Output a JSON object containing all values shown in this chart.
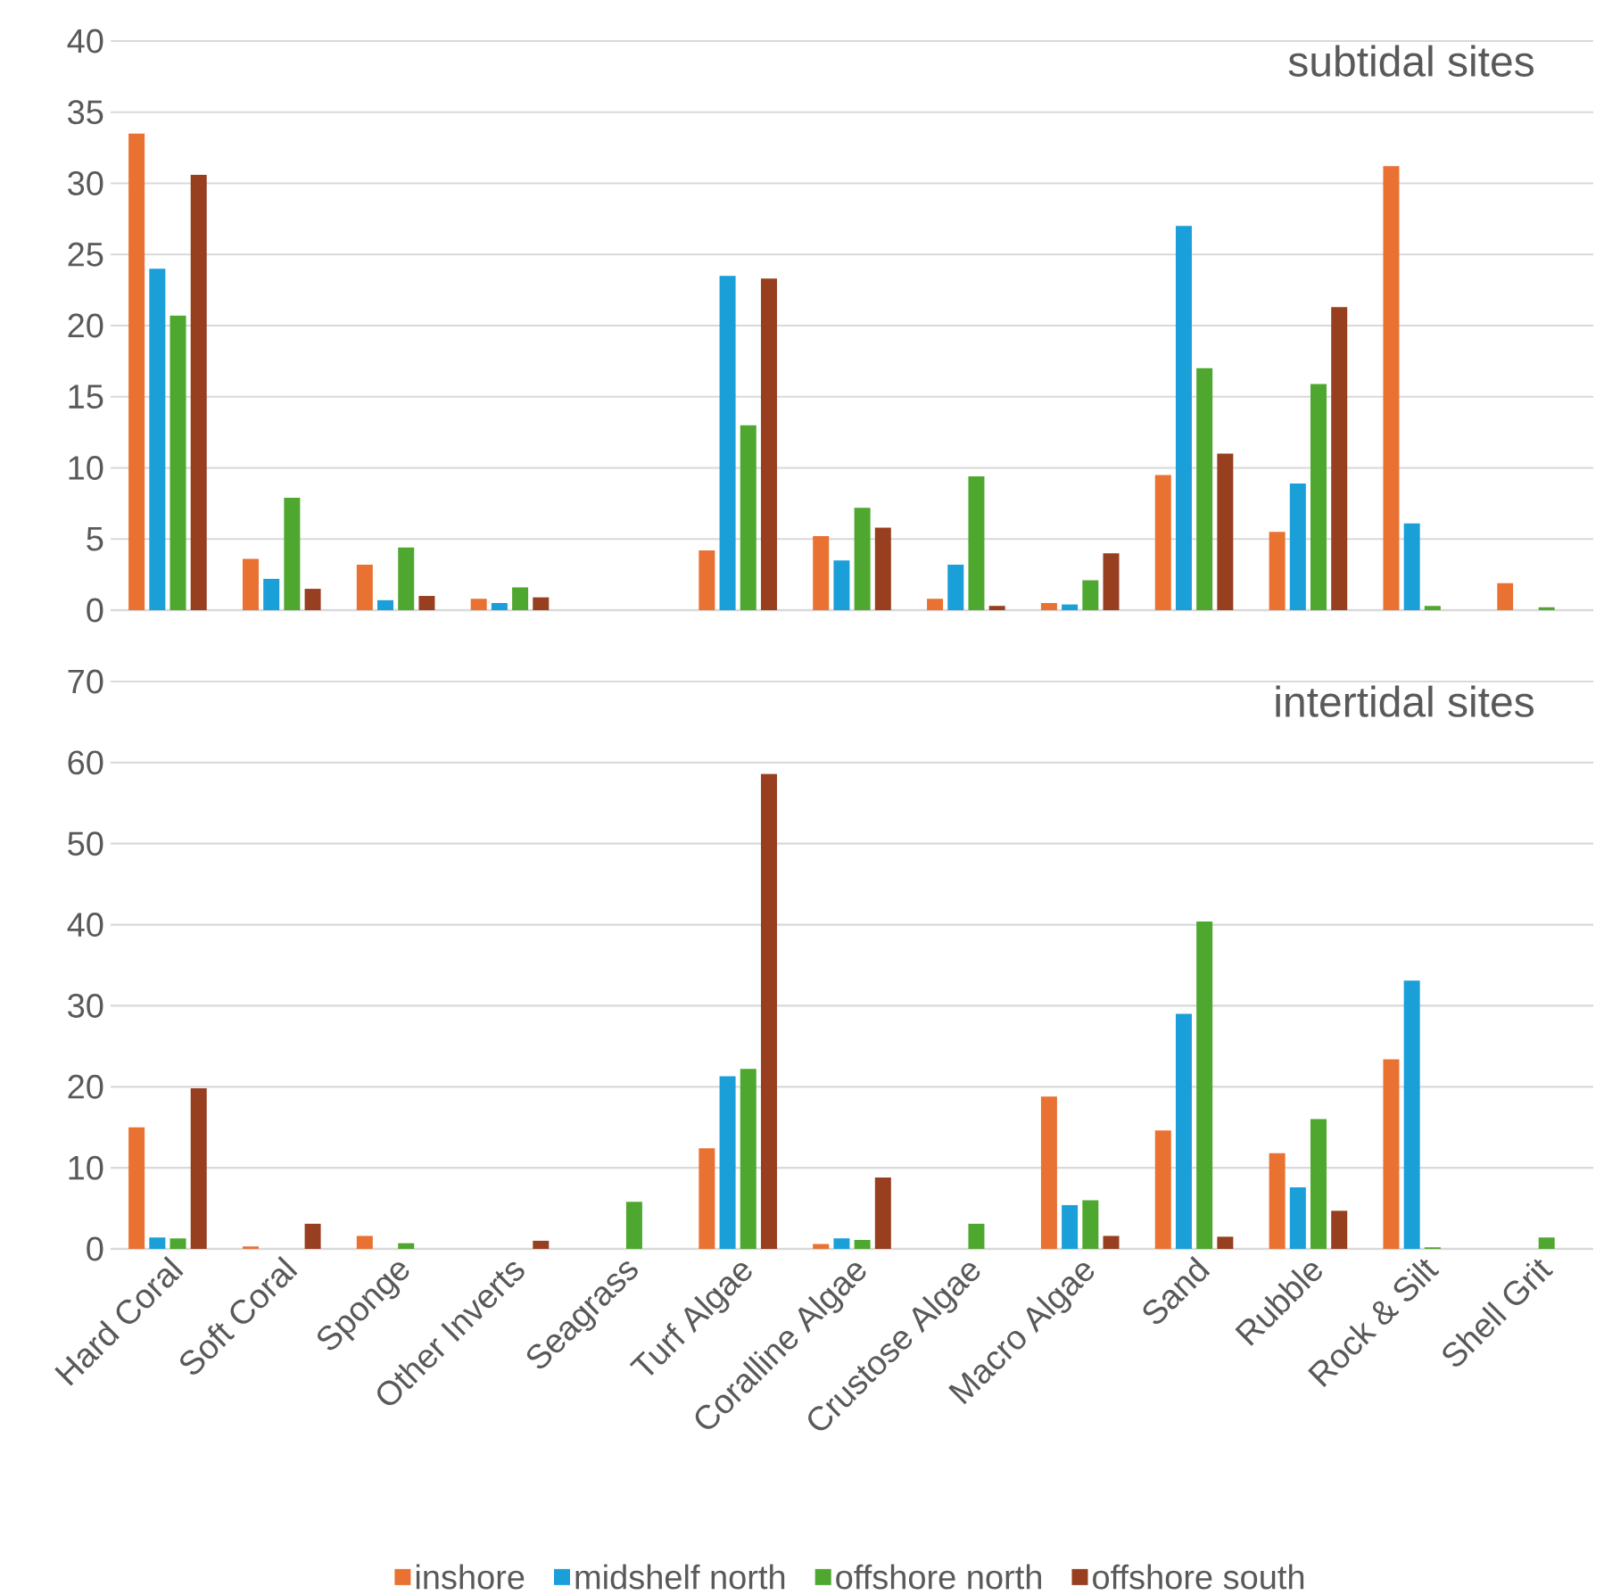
{
  "chart_data": [
    {
      "type": "bar",
      "title": "subtidal sites",
      "categories": [
        null,
        null,
        null,
        null,
        null,
        null,
        null,
        null,
        null,
        null,
        null,
        null,
        null
      ],
      "series": [
        {
          "color": "#e97132",
          "values": [
            33.5,
            3.6,
            3.2,
            0.8,
            0,
            4.2,
            5.2,
            0.8,
            0.5,
            9.5,
            5.5,
            31.2,
            1.9
          ]
        },
        {
          "color": "#1a9fd8",
          "values": [
            24.0,
            2.2,
            0.7,
            0.5,
            0,
            23.5,
            3.5,
            3.2,
            0.4,
            27.0,
            8.9,
            6.1,
            0
          ]
        },
        {
          "color": "#4ea72e",
          "values": [
            20.7,
            7.9,
            4.4,
            1.6,
            0,
            13.0,
            7.2,
            9.4,
            2.1,
            17.0,
            15.9,
            0.3,
            0.2
          ]
        },
        {
          "color": "#973f1f",
          "values": [
            30.6,
            1.5,
            1.0,
            0.9,
            0,
            23.3,
            5.8,
            0.3,
            4.0,
            11.0,
            21.3,
            0,
            0
          ]
        }
      ],
      "ylim": [
        0,
        40
      ],
      "yticks": [
        0,
        5,
        10,
        15,
        20,
        25,
        30,
        35,
        40
      ],
      "grid": "y",
      "tick_labels": "y"
    },
    {
      "type": "bar",
      "title": "intertidal sites",
      "categories": [
        "Hard Coral",
        "Soft Coral",
        "Sponge",
        "Other Inverts",
        "Seagrass",
        "Turf Algae",
        "Coralline Algae",
        "Crustose Algae",
        "Macro Algae",
        "Sand",
        "Rubble",
        "Rock & Silt",
        "Shell Grit"
      ],
      "series": [
        {
          "name": "inshore",
          "color": "#e97132",
          "values": [
            15.0,
            0.3,
            1.6,
            0,
            0,
            12.4,
            0.6,
            0,
            18.8,
            14.6,
            11.8,
            23.4,
            0
          ]
        },
        {
          "name": "midshelf north",
          "color": "#1a9fd8",
          "values": [
            1.4,
            0,
            0,
            0,
            0,
            21.3,
            1.3,
            0,
            5.4,
            29.0,
            7.6,
            33.1,
            0
          ]
        },
        {
          "name": "offshore north",
          "color": "#4ea72e",
          "values": [
            1.3,
            0,
            0.7,
            0,
            5.8,
            22.2,
            1.1,
            3.1,
            6.0,
            40.4,
            16.0,
            0.2,
            1.4
          ]
        },
        {
          "name": "offshore south",
          "color": "#973f1f",
          "values": [
            19.8,
            3.1,
            0,
            1.0,
            0,
            58.6,
            8.8,
            0,
            1.6,
            1.5,
            4.7,
            0,
            0
          ]
        }
      ],
      "ylim": [
        0,
        70
      ],
      "yticks": [
        0,
        10,
        20,
        30,
        40,
        50,
        60,
        70
      ],
      "grid": "y",
      "legend": "bottom"
    }
  ]
}
